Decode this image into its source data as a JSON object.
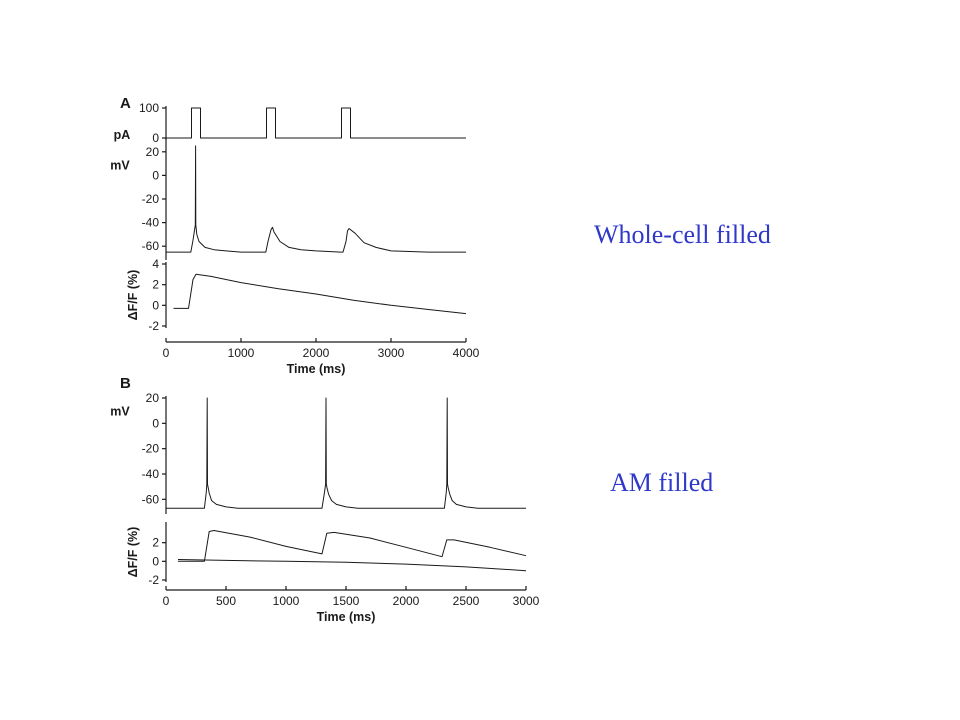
{
  "captions": {
    "whole_cell": "Whole-cell filled",
    "am": "AM filled"
  },
  "colors": {
    "caption": "#2f38c9",
    "trace": "#1a1a1a"
  },
  "chart_data": [
    {
      "type": "line",
      "panel": "A",
      "title": "",
      "xlabel": "Time (ms)",
      "xlim": [
        0,
        4000
      ],
      "xticks": [
        0,
        1000,
        2000,
        3000,
        4000
      ],
      "subplots": [
        {
          "id": "current",
          "ylabel": "pA",
          "ylim": [
            0,
            100
          ],
          "yticks": [
            0,
            100
          ],
          "series": [
            {
              "x": [
                0,
                340,
                340,
                460,
                460,
                1340,
                1340,
                1460,
                1460,
                2340,
                2340,
                2460,
                2460,
                4000
              ],
              "y": [
                0,
                0,
                100,
                100,
                0,
                0,
                100,
                100,
                0,
                0,
                100,
                100,
                0,
                0
              ]
            }
          ]
        },
        {
          "id": "voltage",
          "ylabel": "mV",
          "ylim": [
            -70,
            30
          ],
          "yticks": [
            20,
            0,
            -20,
            -40,
            -60
          ],
          "series": [
            {
              "x": [
                0,
                330,
                360,
                390,
                395,
                398,
                402,
                410,
                440,
                520,
                640,
                800,
                1000,
                1330,
                1360,
                1400,
                1420,
                1440,
                1520,
                1640,
                1800,
                2000,
                2330,
                2360,
                2400,
                2420,
                2440,
                2520,
                2640,
                2800,
                3000,
                3500,
                4000
              ],
              "y": [
                -65,
                -65,
                -55,
                -42,
                25,
                -42,
                -45,
                -50,
                -56,
                -61,
                -63,
                -64,
                -65,
                -65,
                -56,
                -46,
                -44,
                -48,
                -56,
                -61,
                -63,
                -64,
                -65,
                -65,
                -56,
                -47,
                -45,
                -49,
                -57,
                -61,
                -64,
                -65,
                -65
              ]
            }
          ]
        },
        {
          "id": "fluorescence",
          "ylabel": "ΔF/F (%)",
          "ylim": [
            -2,
            4
          ],
          "yticks": [
            4,
            2,
            0,
            -2
          ],
          "series": [
            {
              "x": [
                100,
                300,
                360,
                400,
                600,
                1000,
                1500,
                2000,
                2500,
                3000,
                3500,
                4000
              ],
              "y": [
                -0.3,
                -0.3,
                2.5,
                3.0,
                2.8,
                2.2,
                1.6,
                1.1,
                0.5,
                0.0,
                -0.4,
                -0.8
              ]
            }
          ]
        }
      ]
    },
    {
      "type": "line",
      "panel": "B",
      "title": "",
      "xlabel": "Time (ms)",
      "xlim": [
        0,
        3000
      ],
      "xticks": [
        0,
        500,
        1000,
        1500,
        2000,
        2500,
        3000
      ],
      "subplots": [
        {
          "id": "voltage",
          "ylabel": "mV",
          "ylim": [
            -70,
            20
          ],
          "yticks": [
            20,
            0,
            -20,
            -40,
            -60
          ],
          "series": [
            {
              "x": [
                0,
                320,
                335,
                340,
                343,
                346,
                350,
                360,
                380,
                420,
                500,
                600,
                800,
                1300,
                1320,
                1330,
                1333,
                1336,
                1342,
                1355,
                1380,
                1420,
                1500,
                1600,
                1800,
                2320,
                2335,
                2340,
                2343,
                2346,
                2352,
                2365,
                2385,
                2420,
                2500,
                2600,
                3000
              ],
              "y": [
                -67,
                -67,
                -55,
                -48,
                20,
                -48,
                -50,
                -55,
                -61,
                -64,
                -66,
                -67,
                -67,
                -67,
                -55,
                -48,
                20,
                -48,
                -51,
                -56,
                -61,
                -64,
                -66,
                -67,
                -67,
                -67,
                -55,
                -48,
                20,
                -48,
                -51,
                -56,
                -61,
                -64,
                -66,
                -67,
                -67
              ]
            }
          ]
        },
        {
          "id": "fluorescence",
          "ylabel": "ΔF/F (%)",
          "ylim": [
            -2,
            4
          ],
          "yticks": [
            2,
            0,
            -2
          ],
          "series": [
            {
              "x": [
                100,
                320,
                360,
                400,
                700,
                1000,
                1300,
                1340,
                1400,
                1700,
                2000,
                2300,
                2340,
                2400,
                2700,
                3000
              ],
              "y": [
                0.0,
                0.0,
                3.2,
                3.3,
                2.6,
                1.6,
                0.8,
                3.0,
                3.1,
                2.5,
                1.5,
                0.5,
                2.3,
                2.3,
                1.5,
                0.6
              ]
            },
            {
              "x": [
                100,
                500,
                1000,
                1500,
                2000,
                2500,
                3000
              ],
              "y": [
                0.2,
                0.1,
                0.0,
                -0.1,
                -0.3,
                -0.6,
                -1.0
              ]
            }
          ]
        }
      ]
    }
  ]
}
